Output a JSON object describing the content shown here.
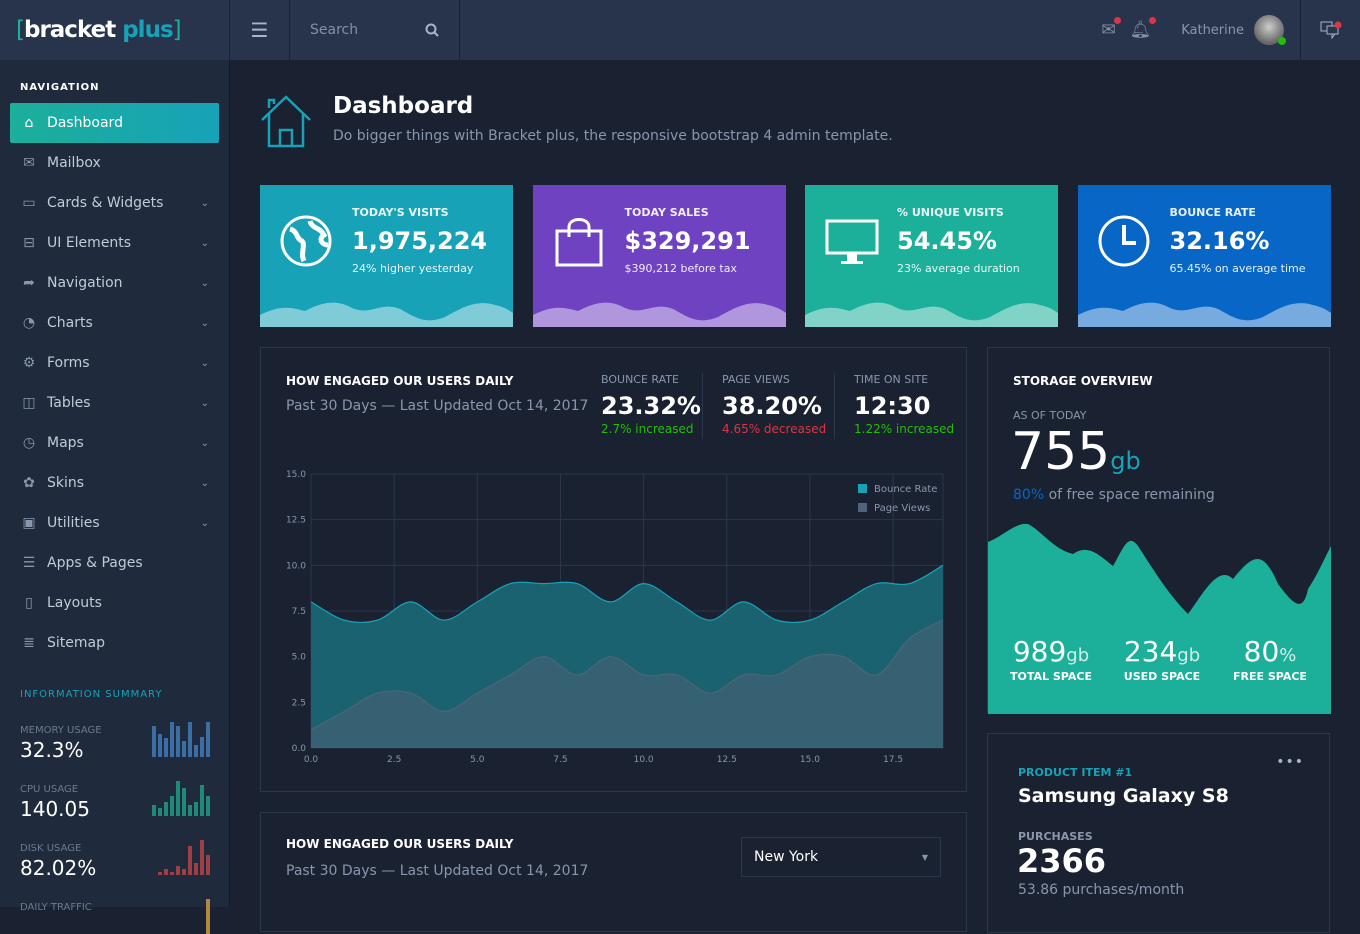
{
  "header": {
    "logo": {
      "bracket_open": "[",
      "word1": "bracket",
      "word2": "plus",
      "bracket_close": "]"
    },
    "search_placeholder": "Search",
    "user_name": "Katherine",
    "icons": [
      "menu-icon",
      "search-icon",
      "mail-icon",
      "bell-icon",
      "chat-icon"
    ]
  },
  "sidebar": {
    "nav_label": "NAVIGATION",
    "items": [
      {
        "label": "Dashboard",
        "icon": "home-icon",
        "active": true,
        "chevron": false,
        "glyph": "⌂"
      },
      {
        "label": "Mailbox",
        "icon": "mail-icon",
        "chevron": false,
        "glyph": "✉"
      },
      {
        "label": "Cards & Widgets",
        "icon": "cards-icon",
        "chevron": true,
        "glyph": "▭"
      },
      {
        "label": "UI Elements",
        "icon": "inbox-icon",
        "chevron": true,
        "glyph": "⊟"
      },
      {
        "label": "Navigation",
        "icon": "share-icon",
        "chevron": true,
        "glyph": "➦"
      },
      {
        "label": "Charts",
        "icon": "pie-chart-icon",
        "chevron": true,
        "glyph": "◔"
      },
      {
        "label": "Forms",
        "icon": "gear-icon",
        "chevron": true,
        "glyph": "⚙"
      },
      {
        "label": "Tables",
        "icon": "table-icon",
        "chevron": true,
        "glyph": "◫"
      },
      {
        "label": "Maps",
        "icon": "compass-icon",
        "chevron": true,
        "glyph": "◷"
      },
      {
        "label": "Skins",
        "icon": "palette-icon",
        "chevron": true,
        "glyph": "✿"
      },
      {
        "label": "Utilities",
        "icon": "briefcase-icon",
        "chevron": true,
        "glyph": "▣"
      },
      {
        "label": "Apps & Pages",
        "icon": "document-icon",
        "chevron": false,
        "glyph": "☰"
      },
      {
        "label": "Layouts",
        "icon": "book-icon",
        "chevron": false,
        "glyph": "▯"
      },
      {
        "label": "Sitemap",
        "icon": "list-icon",
        "chevron": false,
        "glyph": "≣"
      }
    ],
    "info_label": "INFORMATION SUMMARY",
    "info": [
      {
        "label": "MEMORY USAGE",
        "value": "32.3%",
        "color": "#3b6ea5",
        "bars": [
          31,
          23,
          19,
          35,
          31,
          16,
          35,
          12,
          20,
          35
        ]
      },
      {
        "label": "CPU USAGE",
        "value": "140.05",
        "color": "#1f8a78",
        "bars": [
          11,
          8,
          14,
          20,
          35,
          28,
          11,
          14,
          31,
          20
        ]
      },
      {
        "label": "DISK USAGE",
        "value": "82.02%",
        "color": "#9c4046",
        "bars": [
          3,
          6,
          3,
          9,
          6,
          29,
          12,
          35,
          20
        ]
      },
      {
        "label": "DAILY TRAFFIC",
        "value": "",
        "color": "#b0883e",
        "bars": [
          35
        ]
      }
    ]
  },
  "page": {
    "title": "Dashboard",
    "subtitle": "Do bigger things with Bracket plus, the responsive bootstrap 4 admin template."
  },
  "stats": [
    {
      "label": "TODAY'S VISITS",
      "value": "1,975,224",
      "sub": "24% higher yesterday",
      "color": "#17a2b8",
      "icon": "globe-icon"
    },
    {
      "label": "TODAY SALES",
      "value": "$329,291",
      "sub": "$390,212 before tax",
      "color": "#6f42c1",
      "icon": "shopping-bag-icon"
    },
    {
      "label": "% UNIQUE VISITS",
      "value": "54.45%",
      "sub": "23% average duration",
      "color": "#1caf9a",
      "icon": "monitor-icon"
    },
    {
      "label": "BOUNCE RATE",
      "value": "32.16%",
      "sub": "65.45% on average time",
      "color": "#0866c6",
      "icon": "clock-icon"
    }
  ],
  "engage": {
    "title": "HOW ENGAGED OUR USERS DAILY",
    "subtitle": "Past 30 Days — Last Updated Oct 14, 2017",
    "kpis": [
      {
        "label": "BOUNCE RATE",
        "value": "23.32%",
        "delta": "2.7% increased",
        "color": "#23bf08"
      },
      {
        "label": "PAGE VIEWS",
        "value": "38.20%",
        "delta": "4.65% decreased",
        "color": "#dc3545"
      },
      {
        "label": "TIME ON SITE",
        "value": "12:30",
        "delta": "1.22% increased",
        "color": "#23bf08"
      }
    ]
  },
  "chart_data": {
    "type": "area",
    "xlim": [
      0,
      19
    ],
    "ylim": [
      0,
      15
    ],
    "x_ticks": [
      "0.0",
      "2.5",
      "5.0",
      "7.5",
      "10.0",
      "12.5",
      "15.0",
      "17.5"
    ],
    "y_ticks": [
      "0.0",
      "2.5",
      "5.0",
      "7.5",
      "10.0",
      "12.5",
      "15.0"
    ],
    "grid": true,
    "legend": "top-right",
    "x": [
      0,
      1,
      2,
      3,
      4,
      5,
      6,
      7,
      8,
      9,
      10,
      11,
      12,
      13,
      14,
      15,
      16,
      17,
      18,
      19
    ],
    "series": [
      {
        "name": "Bounce Rate",
        "color": "#17a2b8",
        "values": [
          8,
          7,
          7,
          8,
          7,
          8,
          9,
          9,
          9,
          8,
          9,
          8,
          7,
          8,
          7,
          7,
          8,
          9,
          9,
          10
        ]
      },
      {
        "name": "Page Views",
        "color": "#4e6478",
        "values": [
          1,
          2,
          3,
          3,
          2,
          3,
          4,
          5,
          4,
          5,
          4,
          4,
          3,
          4,
          4,
          5,
          5,
          4,
          6,
          7
        ]
      }
    ]
  },
  "engage2": {
    "title": "HOW ENGAGED OUR USERS DAILY",
    "subtitle": "Past 30 Days — Last Updated Oct 14, 2017",
    "select": "New York"
  },
  "storage": {
    "title": "STORAGE OVERVIEW",
    "as_of": "AS OF TODAY",
    "value": "755",
    "unit": "gb",
    "pct": "80%",
    "pct_text": " of free space remaining",
    "stats": [
      {
        "value": "989",
        "unit": "gb",
        "label": "TOTAL SPACE"
      },
      {
        "value": "234",
        "unit": "gb",
        "label": "USED SPACE"
      },
      {
        "value": "80",
        "unit": "%",
        "label": "FREE SPACE"
      }
    ]
  },
  "product": {
    "label": "PRODUCT ITEM #1",
    "name": "Samsung Galaxy S8",
    "purchases_label": "PURCHASES",
    "purchases": "2366",
    "rate": "53.86 purchases/month"
  }
}
